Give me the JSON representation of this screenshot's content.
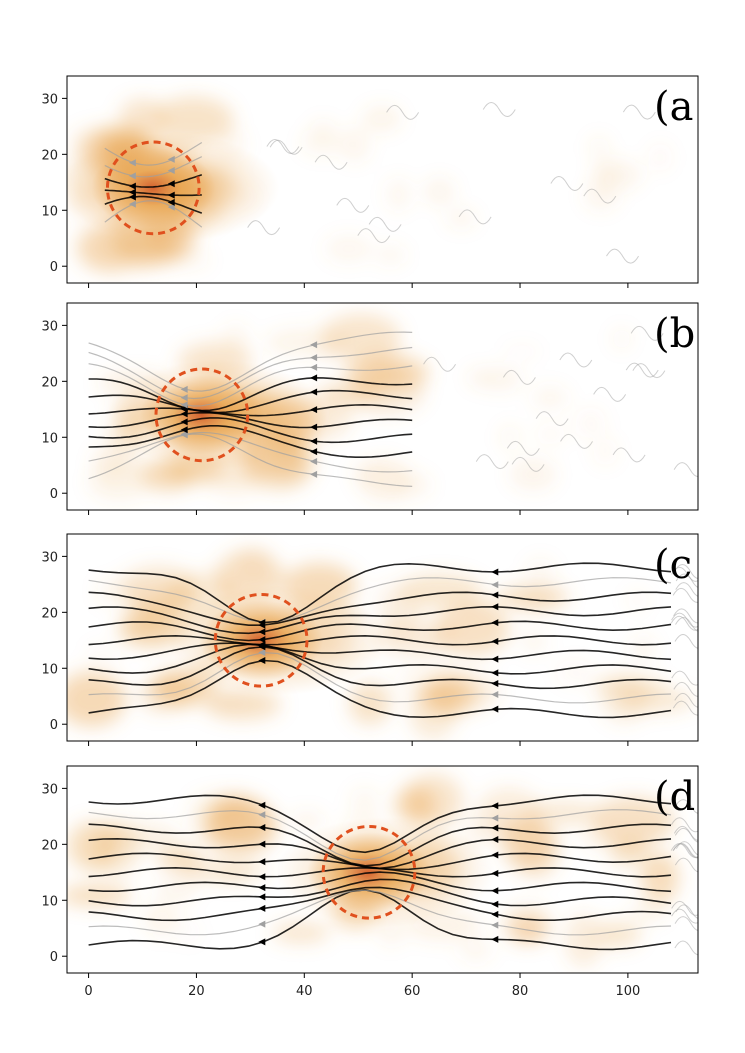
{
  "chart_data": {
    "type": "heatmap",
    "description_kind": "streamline density maps",
    "x_ticks": [
      0,
      20,
      40,
      60,
      80,
      100
    ],
    "y_ticks": [
      0,
      10,
      20,
      30
    ],
    "xlim": [
      -4,
      113
    ],
    "ylim": [
      -3,
      34
    ],
    "shared_x_axis": true,
    "colors": {
      "heat_low": "#ffffff",
      "heat_mid": "#e8a24a",
      "heat_high": "#c0200e",
      "streamline_dark": "#000000",
      "streamline_light": "#a0a0a0",
      "circle": "#e0501e"
    },
    "panels": [
      {
        "label": "(a",
        "circle": {
          "cx": 12,
          "cy": 14,
          "r": 8.5
        },
        "flow_extent_x": [
          2,
          20
        ]
      },
      {
        "label": "(b",
        "circle": {
          "cx": 21,
          "cy": 14,
          "r": 8.5
        },
        "flow_extent_x": [
          0,
          60
        ]
      },
      {
        "label": "(c",
        "circle": {
          "cx": 32,
          "cy": 15,
          "r": 8.5
        },
        "flow_extent_x": [
          0,
          108
        ]
      },
      {
        "label": "(d",
        "circle": {
          "cx": 52,
          "cy": 15,
          "r": 8.5
        },
        "flow_extent_x": [
          0,
          108
        ]
      }
    ]
  }
}
